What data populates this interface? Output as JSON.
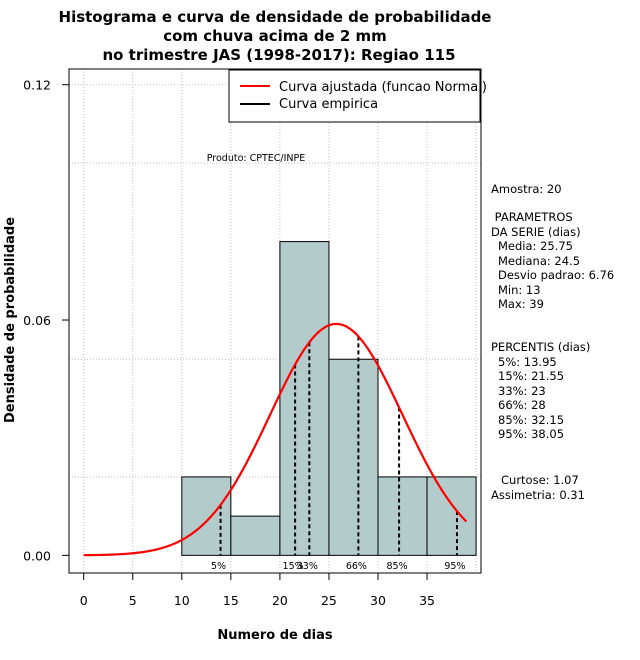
{
  "chart_data": {
    "type": "bar",
    "title": [
      "Histograma e curva de densidade de probabilidade",
      "com chuva acima de 2 mm",
      "no trimestre JAS (1998-2017): Regiao 115"
    ],
    "xlabel": "Numero de dias",
    "ylabel": "Densidade de probabilidade",
    "xlim": [
      -1.5,
      40.5
    ],
    "ylim": [
      -0.0045,
      0.124
    ],
    "xticks": [
      0,
      5,
      10,
      15,
      20,
      25,
      30,
      35
    ],
    "xtick_labels": [
      "0",
      "5",
      "10",
      "15",
      "20",
      "25",
      "30",
      "35"
    ],
    "yticks": [
      0.0,
      0.06,
      0.12
    ],
    "ytick_labels": [
      "0.00",
      "0.06",
      "0.12"
    ],
    "bins": [
      {
        "x0": 10,
        "x1": 15,
        "density": 0.02
      },
      {
        "x0": 15,
        "x1": 20,
        "density": 0.01
      },
      {
        "x0": 20,
        "x1": 25,
        "density": 0.08
      },
      {
        "x0": 25,
        "x1": 30,
        "density": 0.05
      },
      {
        "x0": 30,
        "x1": 35,
        "density": 0.02
      },
      {
        "x0": 35,
        "x1": 40,
        "density": 0.02
      }
    ],
    "normal_fit": {
      "mean": 25.75,
      "sd": 6.76,
      "x_from": 0,
      "x_to": 39
    },
    "percentile_markers": [
      {
        "label": "5%",
        "x": 13.95
      },
      {
        "label": "15%",
        "x": 21.55
      },
      {
        "label": "33%",
        "x": 23
      },
      {
        "label": "66%",
        "x": 28
      },
      {
        "label": "85%",
        "x": 32.15
      },
      {
        "label": "95%",
        "x": 38.05
      }
    ],
    "legend": {
      "position": "top-right",
      "items": [
        {
          "label": "Curva ajustada (funcao Normal)",
          "color": "#ff0000"
        },
        {
          "label": "Curva empirica",
          "color": "#000000"
        }
      ]
    },
    "annotation": "Produto: CPTEC/INPE",
    "grid": true,
    "bar_color": "#b4cbcb",
    "curve_color": "#ff0000"
  },
  "stats_panel": {
    "sample": "Amostra: 20",
    "params_heading": " PARAMETROS",
    "params_subheading": "DA SERIE (dias)",
    "params": [
      "Media: 25.75",
      "Mediana: 24.5",
      "Desvio padrao: 6.76",
      "Min: 13",
      "Max: 39"
    ],
    "percentis_heading": "PERCENTIS (dias)",
    "percentis": [
      "5%: 13.95",
      "15%: 21.55",
      "33%: 23",
      "66%: 28",
      "85%: 32.15",
      "95%: 38.05"
    ],
    "curtose": "Curtose: 1.07",
    "assimetria": "Assimetria: 0.31"
  }
}
